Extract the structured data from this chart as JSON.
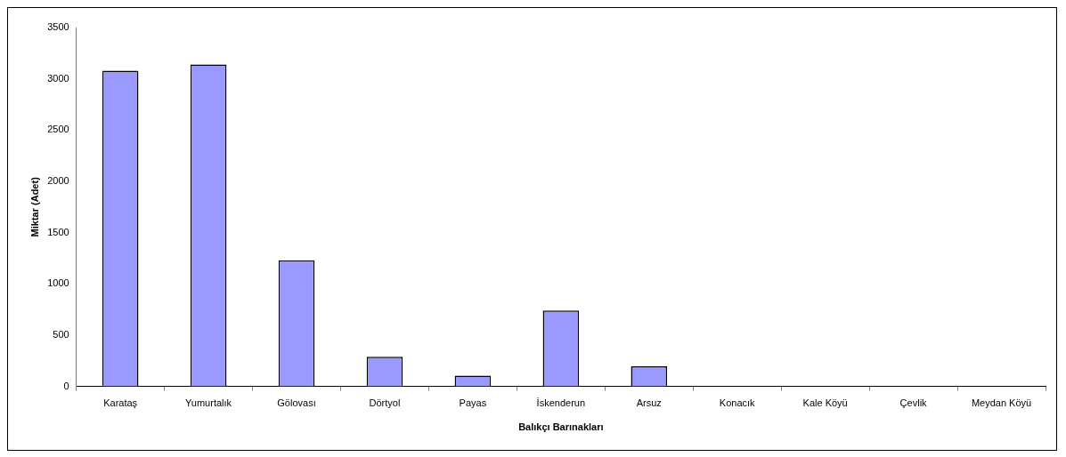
{
  "chart_data": {
    "type": "bar",
    "xlabel": "Balıkçı Barınakları",
    "ylabel": "Miktar (Adet)",
    "categories": [
      "Karataş",
      "Yumurtalık",
      "Gölovası",
      "Dörtyol",
      "Payas",
      "İskenderun",
      "Arsuz",
      "Konacık",
      "Kale Köyü",
      "Çevlik",
      "Meydan Köyü"
    ],
    "values": [
      3080,
      3140,
      1230,
      290,
      105,
      740,
      195,
      0,
      0,
      0,
      0
    ],
    "color": "#9999ff",
    "ylim": [
      0,
      3500
    ],
    "yticks": [
      0,
      500,
      1000,
      1500,
      2000,
      2500,
      3000,
      3500
    ],
    "grid": false,
    "legend": false
  }
}
